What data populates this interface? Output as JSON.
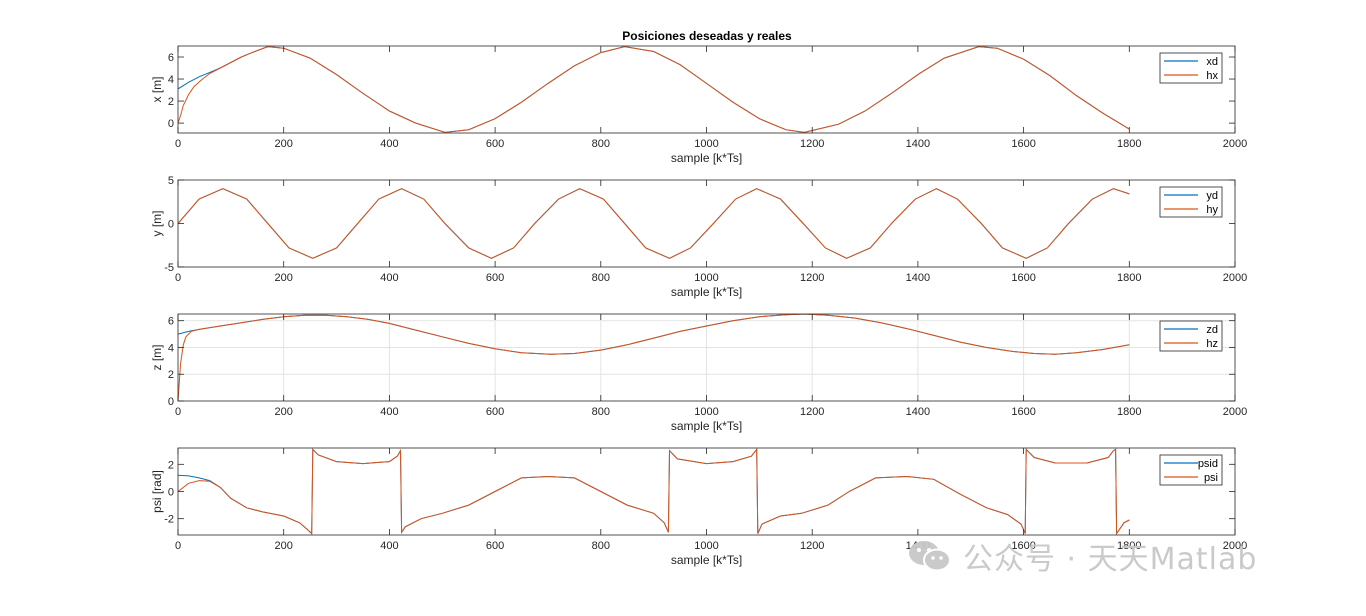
{
  "figure": {
    "title": "Posiciones deseadas y reales"
  },
  "colors": {
    "desired": "#0072BD",
    "real": "#D95319",
    "grid": "#e3e3e3",
    "axis": "#262626"
  },
  "watermark": {
    "text": "公众号 · 天天Matlab",
    "icon": "wechat-logo-icon"
  },
  "chart_data": [
    {
      "type": "line",
      "title": "Posiciones deseadas y reales",
      "xlabel": "sample [k*Ts]",
      "ylabel": "x [m]",
      "xlim": [
        0,
        2000
      ],
      "ylim": [
        -0.9,
        7
      ],
      "xticks": [
        0,
        200,
        400,
        600,
        800,
        1000,
        1200,
        1400,
        1600,
        1800,
        2000
      ],
      "yticks": [
        0,
        2,
        4,
        6
      ],
      "grid": false,
      "legend_position": "top-right",
      "series": [
        {
          "name": "xd",
          "color": "#0072BD",
          "x": [
            0,
            20,
            40,
            60,
            80,
            100,
            120,
            140,
            170,
            200,
            250,
            300,
            350,
            400,
            450,
            505,
            550,
            600,
            650,
            700,
            750,
            800,
            845,
            900,
            950,
            1000,
            1050,
            1100,
            1150,
            1185,
            1250,
            1300,
            1350,
            1400,
            1450,
            1515,
            1550,
            1600,
            1650,
            1700,
            1750,
            1800
          ],
          "y": [
            3.1,
            3.7,
            4.2,
            4.6,
            5.0,
            5.5,
            6.0,
            6.4,
            6.95,
            6.8,
            5.9,
            4.4,
            2.7,
            1.1,
            0.0,
            -0.85,
            -0.6,
            0.4,
            1.9,
            3.6,
            5.2,
            6.4,
            6.95,
            6.5,
            5.3,
            3.6,
            1.9,
            0.4,
            -0.6,
            -0.85,
            -0.1,
            1.1,
            2.7,
            4.4,
            5.9,
            6.95,
            6.8,
            5.8,
            4.3,
            2.5,
            0.9,
            -0.55
          ]
        },
        {
          "name": "hx",
          "color": "#D95319",
          "x": [
            0,
            5,
            10,
            20,
            30,
            45,
            60,
            80,
            100,
            120,
            140,
            170,
            200,
            250,
            300,
            350,
            400,
            450,
            505,
            550,
            600,
            650,
            700,
            750,
            800,
            845,
            900,
            950,
            1000,
            1050,
            1100,
            1150,
            1185,
            1250,
            1300,
            1350,
            1400,
            1450,
            1515,
            1550,
            1600,
            1650,
            1700,
            1750,
            1800
          ],
          "y": [
            0.0,
            0.7,
            1.6,
            2.6,
            3.3,
            3.95,
            4.5,
            5.0,
            5.5,
            6.0,
            6.4,
            6.95,
            6.8,
            5.9,
            4.4,
            2.7,
            1.1,
            0.0,
            -0.85,
            -0.6,
            0.4,
            1.9,
            3.6,
            5.2,
            6.4,
            6.95,
            6.5,
            5.3,
            3.6,
            1.9,
            0.4,
            -0.6,
            -0.85,
            -0.1,
            1.1,
            2.7,
            4.4,
            5.9,
            6.95,
            6.8,
            5.8,
            4.3,
            2.5,
            0.9,
            -0.55
          ]
        }
      ]
    },
    {
      "type": "line",
      "xlabel": "sample [k*Ts]",
      "ylabel": "y [m]",
      "xlim": [
        0,
        2000
      ],
      "ylim": [
        -5,
        5
      ],
      "xticks": [
        0,
        200,
        400,
        600,
        800,
        1000,
        1200,
        1400,
        1600,
        1800,
        2000
      ],
      "yticks": [
        -5,
        0,
        5
      ],
      "grid": false,
      "legend_position": "top-right",
      "series": [
        {
          "name": "yd",
          "color": "#0072BD",
          "x": [
            0,
            40,
            85,
            130,
            170,
            210,
            255,
            300,
            340,
            380,
            423,
            465,
            505,
            550,
            593,
            635,
            675,
            720,
            760,
            805,
            845,
            885,
            930,
            970,
            1013,
            1055,
            1095,
            1140,
            1183,
            1225,
            1265,
            1310,
            1350,
            1395,
            1435,
            1475,
            1520,
            1560,
            1605,
            1645,
            1685,
            1730,
            1770,
            1800
          ],
          "y": [
            0.0,
            2.8,
            4.0,
            2.8,
            0.0,
            -2.8,
            -4.0,
            -2.8,
            0.0,
            2.8,
            4.0,
            2.8,
            0.0,
            -2.8,
            -4.0,
            -2.8,
            0.0,
            2.8,
            4.0,
            2.8,
            0.0,
            -2.8,
            -4.0,
            -2.8,
            0.0,
            2.8,
            4.0,
            2.8,
            0.0,
            -2.8,
            -4.0,
            -2.8,
            0.0,
            2.8,
            4.0,
            2.8,
            0.0,
            -2.8,
            -4.0,
            -2.8,
            0.0,
            2.8,
            4.0,
            3.4
          ]
        },
        {
          "name": "hy",
          "color": "#D95319",
          "x": [
            0,
            40,
            85,
            130,
            170,
            210,
            255,
            300,
            340,
            380,
            423,
            465,
            505,
            550,
            593,
            635,
            675,
            720,
            760,
            805,
            845,
            885,
            930,
            970,
            1013,
            1055,
            1095,
            1140,
            1183,
            1225,
            1265,
            1310,
            1350,
            1395,
            1435,
            1475,
            1520,
            1560,
            1605,
            1645,
            1685,
            1730,
            1770,
            1800
          ],
          "y": [
            0.0,
            2.8,
            4.0,
            2.8,
            0.0,
            -2.8,
            -4.0,
            -2.8,
            0.0,
            2.8,
            4.0,
            2.8,
            0.0,
            -2.8,
            -4.0,
            -2.8,
            0.0,
            2.8,
            4.0,
            2.8,
            0.0,
            -2.8,
            -4.0,
            -2.8,
            0.0,
            2.8,
            4.0,
            2.8,
            0.0,
            -2.8,
            -4.0,
            -2.8,
            0.0,
            2.8,
            4.0,
            2.8,
            0.0,
            -2.8,
            -4.0,
            -2.8,
            0.0,
            2.8,
            4.0,
            3.4
          ]
        }
      ]
    },
    {
      "type": "line",
      "xlabel": "sample [k*Ts]",
      "ylabel": "z [m]",
      "xlim": [
        0,
        2000
      ],
      "ylim": [
        0,
        6.5
      ],
      "xticks": [
        0,
        200,
        400,
        600,
        800,
        1000,
        1200,
        1400,
        1600,
        1800,
        2000
      ],
      "yticks": [
        0,
        2,
        4,
        6
      ],
      "grid": true,
      "legend_position": "top-right",
      "series": [
        {
          "name": "zd",
          "color": "#0072BD",
          "x": [
            0,
            20,
            40,
            80,
            120,
            160,
            200,
            240,
            280,
            320,
            360,
            400,
            450,
            500,
            550,
            600,
            650,
            705,
            750,
            800,
            850,
            900,
            950,
            1000,
            1050,
            1100,
            1150,
            1185,
            1230,
            1280,
            1330,
            1380,
            1430,
            1480,
            1530,
            1580,
            1620,
            1660,
            1700,
            1750,
            1800
          ],
          "y": [
            5.0,
            5.2,
            5.35,
            5.6,
            5.85,
            6.1,
            6.3,
            6.4,
            6.4,
            6.3,
            6.1,
            5.8,
            5.3,
            4.8,
            4.3,
            3.9,
            3.6,
            3.5,
            3.55,
            3.8,
            4.2,
            4.7,
            5.2,
            5.6,
            6.0,
            6.3,
            6.45,
            6.5,
            6.4,
            6.2,
            5.85,
            5.4,
            4.9,
            4.4,
            4.0,
            3.7,
            3.55,
            3.5,
            3.6,
            3.85,
            4.2
          ]
        },
        {
          "name": "hz",
          "color": "#D95319",
          "x": [
            0,
            5,
            10,
            15,
            25,
            40,
            80,
            120,
            160,
            200,
            240,
            280,
            320,
            360,
            400,
            450,
            500,
            550,
            600,
            650,
            705,
            750,
            800,
            850,
            900,
            950,
            1000,
            1050,
            1100,
            1150,
            1185,
            1230,
            1280,
            1330,
            1380,
            1430,
            1480,
            1530,
            1580,
            1620,
            1660,
            1700,
            1750,
            1800
          ],
          "y": [
            0.0,
            2.8,
            4.2,
            4.8,
            5.2,
            5.35,
            5.6,
            5.85,
            6.1,
            6.3,
            6.4,
            6.4,
            6.3,
            6.1,
            5.8,
            5.3,
            4.8,
            4.3,
            3.9,
            3.6,
            3.5,
            3.55,
            3.8,
            4.2,
            4.7,
            5.2,
            5.6,
            6.0,
            6.3,
            6.45,
            6.5,
            6.4,
            6.2,
            5.85,
            5.4,
            4.9,
            4.4,
            4.0,
            3.7,
            3.55,
            3.5,
            3.6,
            3.85,
            4.2
          ]
        }
      ]
    },
    {
      "type": "line",
      "xlabel": "sample [k*Ts]",
      "ylabel": "psi [rad]",
      "xlim": [
        0,
        2000
      ],
      "ylim": [
        -3.2,
        3.2
      ],
      "xticks": [
        0,
        200,
        400,
        600,
        800,
        1000,
        1200,
        1400,
        1600,
        1800,
        2000
      ],
      "yticks": [
        -2,
        0,
        2
      ],
      "grid": false,
      "legend_position": "top-right",
      "series": [
        {
          "name": "psid",
          "color": "#0072BD",
          "x": [
            0,
            20,
            40,
            60,
            80,
            100,
            130,
            160,
            200,
            230,
            245,
            253,
            255,
            265,
            300,
            350,
            400,
            415,
            421,
            423,
            430,
            460,
            500,
            550,
            600,
            650,
            700,
            750,
            800,
            850,
            900,
            920,
            928,
            930,
            945,
            1000,
            1050,
            1085,
            1095,
            1097,
            1105,
            1140,
            1180,
            1230,
            1270,
            1320,
            1380,
            1430,
            1480,
            1530,
            1570,
            1595,
            1603,
            1605,
            1620,
            1660,
            1720,
            1760,
            1770,
            1774,
            1776,
            1790,
            1800
          ],
          "y": [
            1.2,
            1.15,
            1.0,
            0.8,
            0.3,
            -0.5,
            -1.2,
            -1.5,
            -1.8,
            -2.3,
            -2.8,
            -3.1,
            3.1,
            2.7,
            2.2,
            2.05,
            2.2,
            2.6,
            3.0,
            -3.0,
            -2.6,
            -2.0,
            -1.6,
            -1.0,
            0.0,
            1.0,
            1.1,
            1.0,
            0.0,
            -1.0,
            -1.6,
            -2.3,
            -3.0,
            3.0,
            2.4,
            2.05,
            2.2,
            2.6,
            3.1,
            -3.1,
            -2.4,
            -1.8,
            -1.6,
            -1.0,
            0.0,
            1.0,
            1.1,
            0.9,
            -0.2,
            -1.2,
            -1.7,
            -2.4,
            -3.1,
            3.1,
            2.5,
            2.1,
            2.1,
            2.5,
            3.0,
            3.1,
            -3.1,
            -2.3,
            -2.1
          ]
        },
        {
          "name": "psi",
          "color": "#D95319",
          "x": [
            0,
            20,
            40,
            60,
            80,
            100,
            130,
            160,
            200,
            230,
            245,
            253,
            255,
            265,
            300,
            350,
            400,
            415,
            421,
            423,
            430,
            460,
            500,
            550,
            600,
            650,
            700,
            750,
            800,
            850,
            900,
            920,
            928,
            930,
            945,
            1000,
            1050,
            1085,
            1095,
            1097,
            1105,
            1140,
            1180,
            1230,
            1270,
            1320,
            1380,
            1430,
            1480,
            1530,
            1570,
            1595,
            1603,
            1605,
            1620,
            1660,
            1720,
            1760,
            1770,
            1774,
            1776,
            1790,
            1800
          ],
          "y": [
            0.0,
            0.6,
            0.8,
            0.75,
            0.3,
            -0.5,
            -1.2,
            -1.5,
            -1.8,
            -2.3,
            -2.8,
            -3.1,
            3.1,
            2.7,
            2.2,
            2.05,
            2.2,
            2.6,
            3.0,
            -3.0,
            -2.6,
            -2.0,
            -1.6,
            -1.0,
            0.0,
            1.0,
            1.1,
            1.0,
            0.0,
            -1.0,
            -1.6,
            -2.3,
            -3.0,
            3.0,
            2.4,
            2.05,
            2.2,
            2.6,
            3.1,
            -3.1,
            -2.4,
            -1.8,
            -1.6,
            -1.0,
            0.0,
            1.0,
            1.1,
            0.9,
            -0.2,
            -1.2,
            -1.7,
            -2.4,
            -3.1,
            3.1,
            2.5,
            2.1,
            2.1,
            2.5,
            3.0,
            3.1,
            -3.1,
            -2.3,
            -2.1
          ]
        }
      ]
    }
  ]
}
